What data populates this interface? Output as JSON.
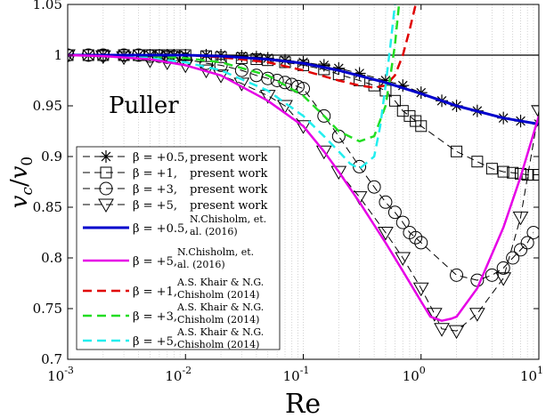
{
  "chart_data": {
    "type": "line",
    "xscale": "log",
    "xlim": [
      0.001,
      10
    ],
    "ylim": [
      0.7,
      1.05
    ],
    "xlabel": "Re",
    "ylabel": "v_c / v_0",
    "ylabel_parts": {
      "v": "v",
      "c": "c",
      "slash": "/",
      "zero": "0"
    },
    "annotation": "Puller",
    "xticks": [
      {
        "value": 0.001,
        "base": "10",
        "exp": "-3"
      },
      {
        "value": 0.01,
        "base": "10",
        "exp": "-2"
      },
      {
        "value": 0.1,
        "base": "10",
        "exp": "-1"
      },
      {
        "value": 1,
        "base": "10",
        "exp": "0"
      },
      {
        "value": 10,
        "base": "10",
        "exp": "1"
      }
    ],
    "yticks": [
      {
        "value": 0.7,
        "label": "0.7"
      },
      {
        "value": 0.75,
        "label": "0.75"
      },
      {
        "value": 0.8,
        "label": "0.8"
      },
      {
        "value": 0.85,
        "label": "0.85"
      },
      {
        "value": 0.9,
        "label": "0.9"
      },
      {
        "value": 0.95,
        "label": "0.95"
      },
      {
        "value": 1,
        "label": "1"
      },
      {
        "value": 1.05,
        "label": "1.05"
      }
    ],
    "grid": "x-minor-dotted",
    "reference_line": 1.0,
    "legend_position": "bottom-left",
    "series": [
      {
        "name": "present-b05",
        "beta": "β = +0.5,",
        "desc": [
          "present work"
        ],
        "marker": "star",
        "color": "#000000",
        "style": "dashed",
        "width": 1,
        "x": [
          0.001,
          0.0015,
          0.002,
          0.003,
          0.004,
          0.005,
          0.006,
          0.007,
          0.008,
          0.01,
          0.015,
          0.02,
          0.03,
          0.04,
          0.05,
          0.07,
          0.1,
          0.15,
          0.2,
          0.3,
          0.5,
          0.7,
          1,
          1.5,
          2,
          3,
          5,
          7,
          10
        ],
        "y": [
          1.0,
          1.0,
          1.0,
          1.0,
          1.0,
          1.0,
          1.0,
          1.0,
          1.0,
          1.0,
          1.0,
          1.0,
          0.999,
          0.998,
          0.997,
          0.995,
          0.993,
          0.99,
          0.987,
          0.982,
          0.975,
          0.97,
          0.963,
          0.955,
          0.95,
          0.945,
          0.938,
          0.935,
          0.932
        ]
      },
      {
        "name": "present-b1",
        "beta": "β = +1,",
        "desc": [
          "present work"
        ],
        "marker": "square",
        "color": "#000000",
        "style": "dashed",
        "width": 1,
        "x": [
          0.001,
          0.0015,
          0.002,
          0.003,
          0.004,
          0.005,
          0.006,
          0.007,
          0.008,
          0.01,
          0.015,
          0.02,
          0.03,
          0.04,
          0.05,
          0.07,
          0.1,
          0.15,
          0.2,
          0.3,
          0.4,
          0.5,
          0.6,
          0.7,
          0.8,
          0.9,
          1,
          2,
          3,
          4,
          5,
          6,
          7,
          8,
          9,
          10
        ],
        "y": [
          1.0,
          1.0,
          1.0,
          1.0,
          1.0,
          1.0,
          1.0,
          1.0,
          1.0,
          1.0,
          0.999,
          0.998,
          0.997,
          0.996,
          0.995,
          0.993,
          0.99,
          0.986,
          0.981,
          0.975,
          0.97,
          0.965,
          0.955,
          0.945,
          0.94,
          0.935,
          0.93,
          0.905,
          0.895,
          0.888,
          0.885,
          0.884,
          0.883,
          0.882,
          0.882,
          0.882
        ]
      },
      {
        "name": "present-b3",
        "beta": "β = +3,",
        "desc": [
          "present work"
        ],
        "marker": "circle",
        "color": "#000000",
        "style": "dashed",
        "width": 1,
        "x": [
          0.001,
          0.0015,
          0.002,
          0.003,
          0.004,
          0.005,
          0.006,
          0.007,
          0.008,
          0.009,
          0.01,
          0.015,
          0.02,
          0.03,
          0.04,
          0.05,
          0.06,
          0.07,
          0.08,
          0.09,
          0.1,
          0.15,
          0.2,
          0.3,
          0.4,
          0.5,
          0.6,
          0.7,
          0.8,
          0.9,
          1,
          2,
          3,
          4,
          5,
          6,
          7,
          8,
          9
        ],
        "y": [
          1.0,
          1.0,
          1.0,
          1.0,
          1.0,
          0.999,
          0.999,
          0.998,
          0.998,
          0.997,
          0.996,
          0.992,
          0.99,
          0.985,
          0.98,
          0.977,
          0.975,
          0.973,
          0.971,
          0.969,
          0.967,
          0.94,
          0.92,
          0.89,
          0.87,
          0.855,
          0.845,
          0.835,
          0.825,
          0.82,
          0.815,
          0.783,
          0.778,
          0.783,
          0.79,
          0.8,
          0.808,
          0.815,
          0.825
        ]
      },
      {
        "name": "present-b5",
        "beta": "β = +5,",
        "desc": [
          "present work"
        ],
        "marker": "triangle",
        "color": "#000000",
        "style": "dashed",
        "width": 1,
        "x": [
          0.001,
          0.002,
          0.003,
          0.005,
          0.007,
          0.01,
          0.015,
          0.02,
          0.03,
          0.05,
          0.07,
          0.1,
          0.15,
          0.2,
          0.3,
          0.5,
          0.7,
          1,
          1.3,
          1.5,
          2,
          3,
          5,
          7,
          10
        ],
        "y": [
          1.0,
          0.999,
          0.998,
          0.995,
          0.993,
          0.99,
          0.985,
          0.98,
          0.972,
          0.96,
          0.95,
          0.93,
          0.905,
          0.885,
          0.86,
          0.825,
          0.8,
          0.77,
          0.745,
          0.73,
          0.728,
          0.745,
          0.78,
          0.84,
          0.945
        ]
      },
      {
        "name": "chisholm-b05",
        "beta": "β = +0.5,",
        "desc": [
          "N.Chisholm,      et.",
          "al. (2016)"
        ],
        "marker": "none",
        "color": "#0000cc",
        "style": "solid",
        "width": 3,
        "x": [
          0.001,
          0.002,
          0.005,
          0.01,
          0.02,
          0.05,
          0.1,
          0.2,
          0.5,
          1,
          2,
          5,
          10
        ],
        "y": [
          1.0,
          1.0,
          1.0,
          1.0,
          0.999,
          0.996,
          0.992,
          0.985,
          0.973,
          0.962,
          0.95,
          0.938,
          0.932
        ]
      },
      {
        "name": "chisholm-b5",
        "beta": "β = +5,",
        "desc": [
          "N.Chisholm,      et.",
          "al. (2016)"
        ],
        "marker": "none",
        "color": "#e600e6",
        "style": "solid",
        "width": 2.5,
        "x": [
          0.001,
          0.002,
          0.005,
          0.01,
          0.02,
          0.05,
          0.1,
          0.15,
          0.2,
          0.3,
          0.5,
          0.7,
          1,
          1.2,
          1.5,
          1.8,
          2,
          3,
          5,
          7,
          10
        ],
        "y": [
          1.0,
          0.999,
          0.996,
          0.99,
          0.98,
          0.955,
          0.93,
          0.905,
          0.885,
          0.855,
          0.815,
          0.787,
          0.757,
          0.742,
          0.738,
          0.74,
          0.742,
          0.77,
          0.83,
          0.88,
          0.94
        ]
      },
      {
        "name": "khair-b1",
        "beta": "β = +1,",
        "desc": [
          "A.S. Khair & N.G.",
          "Chisholm (2014)"
        ],
        "marker": "none",
        "color": "#e00000",
        "style": "dashed",
        "width": 2.5,
        "x": [
          0.001,
          0.002,
          0.005,
          0.01,
          0.02,
          0.05,
          0.1,
          0.2,
          0.3,
          0.4,
          0.5,
          0.6,
          0.7,
          0.8,
          0.9
        ],
        "y": [
          1.0,
          1.0,
          1.0,
          1.0,
          0.998,
          0.993,
          0.985,
          0.975,
          0.97,
          0.968,
          0.97,
          0.98,
          1.0,
          1.025,
          1.05
        ]
      },
      {
        "name": "khair-b3",
        "beta": "β = +3,",
        "desc": [
          "A.S. Khair & N.G.",
          "Chisholm (2014)"
        ],
        "marker": "none",
        "color": "#22dd22",
        "style": "dashed",
        "width": 2.5,
        "x": [
          0.001,
          0.002,
          0.005,
          0.01,
          0.02,
          0.05,
          0.1,
          0.15,
          0.2,
          0.3,
          0.4,
          0.5,
          0.55,
          0.6,
          0.65
        ],
        "y": [
          1.0,
          1.0,
          0.999,
          0.997,
          0.993,
          0.98,
          0.96,
          0.94,
          0.925,
          0.915,
          0.92,
          0.95,
          0.98,
          1.01,
          1.05
        ]
      },
      {
        "name": "khair-b5",
        "beta": "β = +5,",
        "desc": [
          "A.S. Khair & N.G.",
          "Chisholm (2014)"
        ],
        "marker": "none",
        "color": "#22eeee",
        "style": "dashed",
        "width": 2.5,
        "x": [
          0.001,
          0.002,
          0.005,
          0.01,
          0.02,
          0.05,
          0.1,
          0.15,
          0.2,
          0.25,
          0.3,
          0.4,
          0.45,
          0.5,
          0.55,
          0.6
        ],
        "y": [
          1.0,
          0.999,
          0.997,
          0.993,
          0.985,
          0.965,
          0.94,
          0.92,
          0.905,
          0.893,
          0.888,
          0.9,
          0.93,
          0.97,
          1.01,
          1.05
        ]
      }
    ]
  }
}
